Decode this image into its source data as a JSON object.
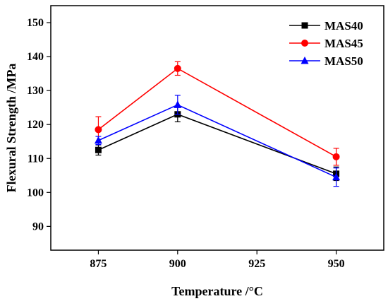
{
  "chart_data": {
    "type": "line",
    "xlabel": "Temperature /",
    "xlabel_unit": "°C",
    "ylabel": "Flexural Strength /MPa",
    "x": [
      875,
      900,
      950
    ],
    "x_ticks": [
      875,
      900,
      925,
      950
    ],
    "y_ticks": [
      90,
      100,
      110,
      120,
      130,
      140,
      150
    ],
    "xlim": [
      860,
      965
    ],
    "ylim": [
      83,
      155
    ],
    "grid": false,
    "legend_position": "top-right",
    "series": [
      {
        "name": "MAS40",
        "color": "#000000",
        "marker": "square",
        "values": [
          112.5,
          123.0,
          105.5
        ],
        "errors": [
          1.5,
          2.2,
          2.0
        ]
      },
      {
        "name": "MAS45",
        "color": "#ff0000",
        "marker": "circle",
        "values": [
          118.5,
          136.5,
          110.5
        ],
        "errors": [
          3.8,
          2.0,
          2.5
        ]
      },
      {
        "name": "MAS50",
        "color": "#0000ff",
        "marker": "triangle",
        "values": [
          115.3,
          125.8,
          104.5
        ],
        "errors": [
          1.2,
          2.8,
          2.7
        ]
      }
    ]
  }
}
